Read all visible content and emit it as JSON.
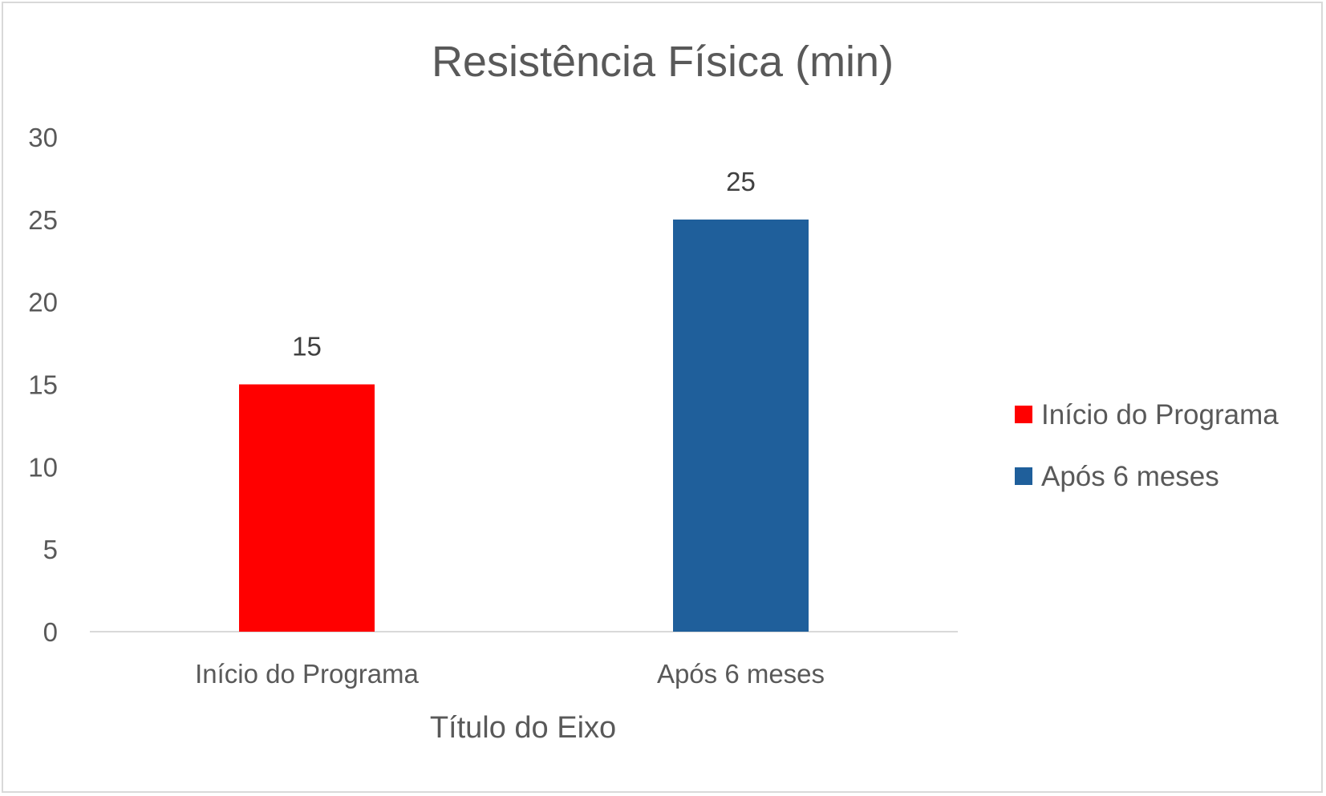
{
  "chart_data": {
    "type": "bar",
    "title": "Resistência Física (min)",
    "xlabel": "Título do Eixo",
    "ylabel": "",
    "categories": [
      "Início do Programa",
      "Após 6 meses"
    ],
    "values": [
      15,
      25
    ],
    "colors": [
      "#ff0000",
      "#1f5f9b"
    ],
    "ylim": [
      0,
      30
    ],
    "yticks": [
      0,
      5,
      10,
      15,
      20,
      25,
      30
    ],
    "grid": false,
    "data_labels": true,
    "legend": {
      "position": "right",
      "entries": [
        {
          "label": "Início do Programa",
          "color": "#ff0000"
        },
        {
          "label": "Após 6 meses",
          "color": "#1f5f9b"
        }
      ]
    }
  }
}
